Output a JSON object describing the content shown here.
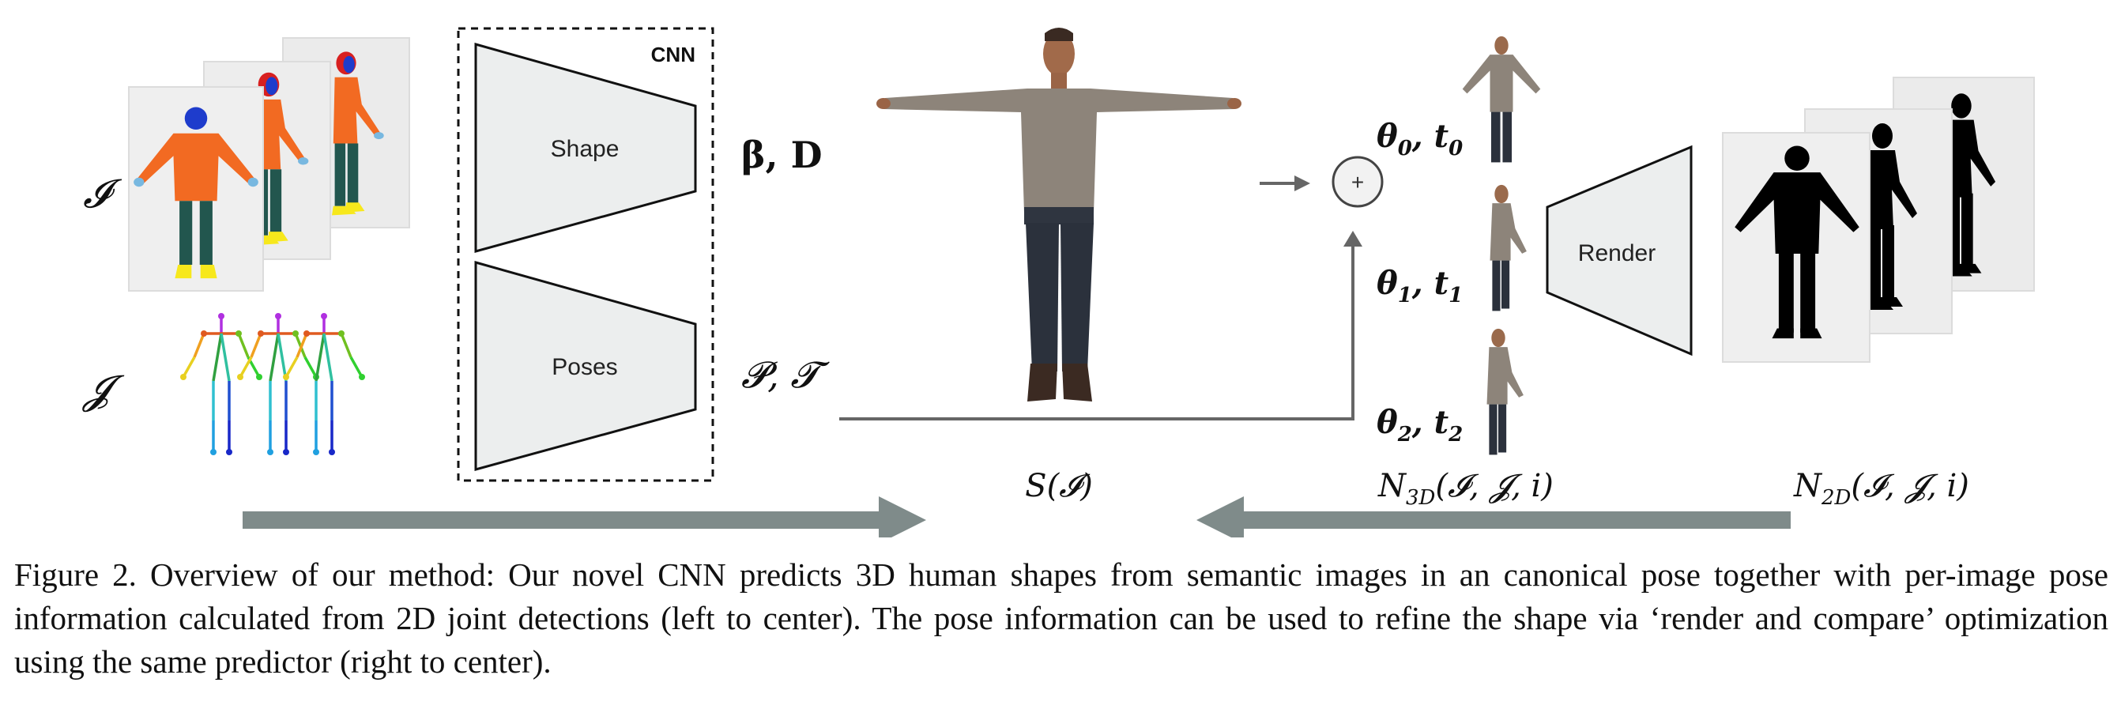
{
  "figure": {
    "inputs": {
      "images_symbol": "𝓘",
      "joints_symbol": "𝓙"
    },
    "cnn": {
      "title": "CNN",
      "shape_label": "Shape",
      "poses_label": "Poses"
    },
    "outputs": {
      "shape_params": "β, D",
      "pose_params": "𝓟, 𝓣"
    },
    "plus_symbol": "+",
    "pose_labels": [
      {
        "theta": "θ",
        "sub": "0",
        "t": "t",
        "tsub": "0"
      },
      {
        "theta": "θ",
        "sub": "1",
        "t": "t",
        "tsub": "1"
      },
      {
        "theta": "θ",
        "sub": "2",
        "t": "t",
        "tsub": "2"
      }
    ],
    "render_label": "Render",
    "bottom_labels": {
      "shape_fn": "S(𝓘)",
      "n3d": "N",
      "n3d_sub": "3D",
      "n3d_args": "(𝓘, 𝓙, i)",
      "n2d": "N",
      "n2d_sub": "2D",
      "n2d_args": "(𝓘, 𝓙, i)"
    },
    "colors": {
      "trapezoid_fill": "#eceeee",
      "big_arrow": "#7f8b8a",
      "connector": "#666666",
      "orange_shirt": "#f26a22",
      "green_pants": "#22564e",
      "blue_head": "#1e3ccc",
      "red_hair": "#d82020",
      "yellow_shoes": "#f7e81c",
      "silhouette": "#000000",
      "gray_shirt": "#8d847a",
      "dark_jeans": "#2b313c"
    }
  },
  "caption": {
    "text": "Figure 2. Overview of our method: Our novel CNN predicts 3D human shapes from semantic images in an canonical pose together with per-image pose information calculated from 2D joint detections (left to center). The pose information can be used to refine the shape via ‘render and compare’ optimization using the same predictor (right to center)."
  }
}
